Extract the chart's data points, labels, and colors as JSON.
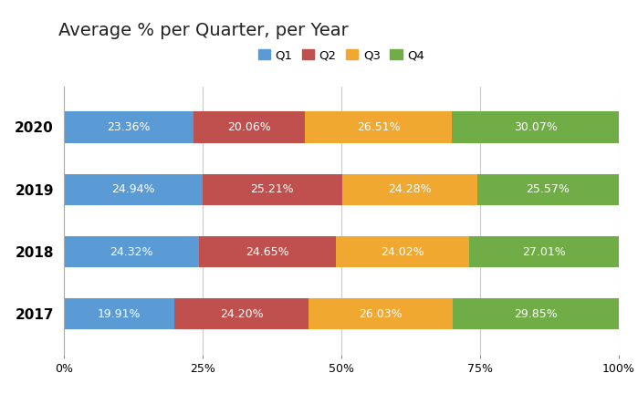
{
  "title": "Average % per Quarter, per Year",
  "years": [
    "2020",
    "2019",
    "2018",
    "2017"
  ],
  "quarters": [
    "Q1",
    "Q2",
    "Q3",
    "Q4"
  ],
  "values": {
    "2020": [
      23.36,
      20.06,
      26.51,
      30.07
    ],
    "2019": [
      24.94,
      25.21,
      24.28,
      25.57
    ],
    "2018": [
      24.32,
      24.65,
      24.02,
      27.01
    ],
    "2017": [
      19.91,
      24.2,
      26.03,
      29.85
    ]
  },
  "colors": [
    "#5B9BD5",
    "#C0504D",
    "#F0A830",
    "#70AD47"
  ],
  "background_color": "#ffffff",
  "label_color": "#ffffff",
  "label_fontsize": 9,
  "title_fontsize": 14,
  "bar_height": 0.5,
  "xlim": [
    0,
    100
  ],
  "xticks": [
    0,
    25,
    50,
    75,
    100
  ],
  "xticklabels": [
    "0%",
    "25%",
    "50%",
    "75%",
    "100%"
  ],
  "grid_color": "#cccccc",
  "ytick_fontsize": 11,
  "xtick_fontsize": 9
}
